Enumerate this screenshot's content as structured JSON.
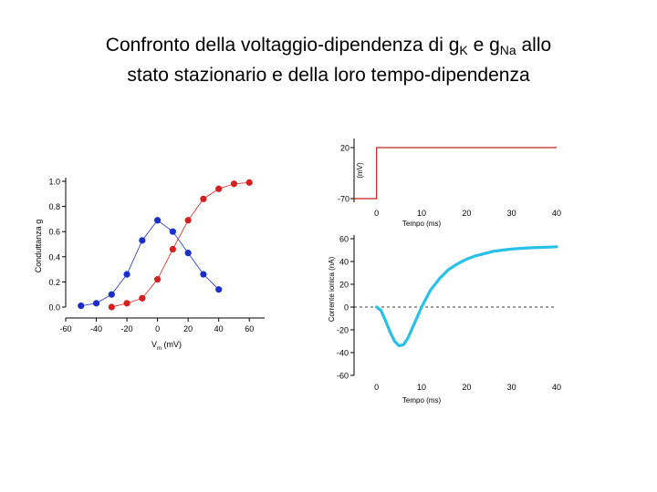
{
  "slide": {
    "title_part1": "Confronto della voltaggio-dipendenza di g",
    "title_sub1": "K",
    "title_part2": " e g",
    "title_sub2": "Na",
    "title_part3": " allo",
    "title_line2": "stato stazionario e della loro tempo-dipendenza"
  },
  "chart_data": [
    {
      "type": "scatter",
      "ylabel": "Conduttanza g",
      "xlabel_main": "V",
      "xlabel_sub": "m",
      "xlabel_unit": " (mV)",
      "xticks": [
        -60,
        -40,
        -20,
        0,
        20,
        40,
        60
      ],
      "yticks": [
        0.0,
        0.2,
        0.4,
        0.6,
        0.8,
        1.0
      ],
      "ytick_labels": [
        "0.0",
        "0.2",
        "0.4",
        "0.6",
        "0.8",
        "1.0"
      ],
      "xlim": [
        -60,
        70
      ],
      "ylim": [
        0,
        1.0
      ],
      "series": [
        {
          "color": "#1a2fc8",
          "x": [
            -50,
            -40,
            -30,
            -20,
            -10,
            0,
            10,
            20,
            30,
            40
          ],
          "y": [
            0.01,
            0.03,
            0.1,
            0.26,
            0.53,
            0.69,
            0.6,
            0.43,
            0.26,
            0.14
          ]
        },
        {
          "color": "#d42020",
          "x": [
            -30,
            -20,
            -10,
            0,
            10,
            20,
            30,
            40,
            50,
            60
          ],
          "y": [
            0.0,
            0.03,
            0.07,
            0.22,
            0.46,
            0.69,
            0.86,
            0.94,
            0.98,
            0.99
          ]
        }
      ]
    },
    {
      "type": "line",
      "ylabel": "(mV)",
      "xlabel": "Tempo (ms)",
      "xticks": [
        0,
        10,
        20,
        30,
        40
      ],
      "yticks": [
        -70,
        20
      ],
      "xlim": [
        -5,
        40
      ],
      "series": [
        {
          "color": "#c42020",
          "x": [
            -5,
            0,
            0,
            40
          ],
          "y": [
            -70,
            -70,
            20,
            20
          ]
        }
      ]
    },
    {
      "type": "line",
      "ylabel": "Corrente ionica (nA)",
      "xlabel": "Tempo (ms)",
      "xticks": [
        0,
        10,
        20,
        30,
        40
      ],
      "yticks": [
        -60,
        -40,
        -20,
        0,
        20,
        40,
        60
      ],
      "xlim": [
        -5,
        40
      ],
      "ylim": [
        -60,
        60
      ],
      "baseline": {
        "y": 0,
        "style": "dashed"
      },
      "series": [
        {
          "color": "#29c0e8",
          "x": [
            0,
            1,
            2,
            3,
            4,
            5,
            6,
            7,
            8,
            9,
            10,
            12,
            14,
            16,
            18,
            20,
            22,
            24,
            26,
            28,
            30,
            32,
            34,
            36,
            38,
            40
          ],
          "y": [
            0,
            -3,
            -12,
            -22,
            -30,
            -34,
            -33,
            -27,
            -18,
            -9,
            0,
            15,
            25,
            33,
            38,
            42,
            45,
            47,
            49,
            50,
            51,
            51.5,
            52,
            52.3,
            52.6,
            53
          ]
        }
      ]
    }
  ]
}
